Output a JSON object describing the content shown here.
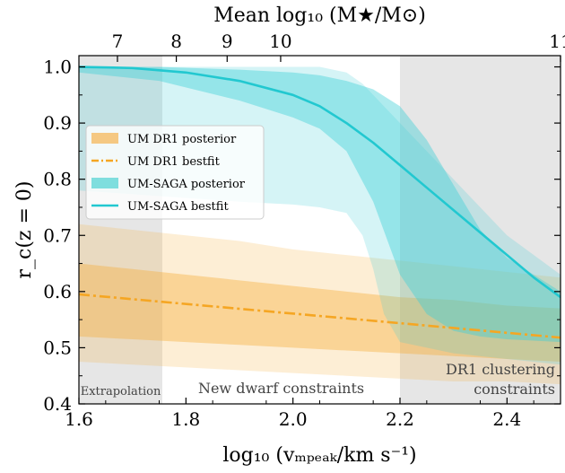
{
  "chart_data": {
    "type": "area",
    "xlabel": "log₁₀ (vₘₚₑₐₖ/km s⁻¹)",
    "ylabel": "r_c(z = 0)",
    "top_xlabel": "Mean log₁₀ (M★/M⊙)",
    "xlim": [
      1.6,
      2.5
    ],
    "ylim": [
      0.4,
      1.02
    ],
    "x_ticks": [
      1.6,
      1.8,
      2.0,
      2.2,
      2.4
    ],
    "x_tick_labels": [
      "1.6",
      "1.8",
      "2.0",
      "2.2",
      "2.4"
    ],
    "y_ticks": [
      0.4,
      0.5,
      0.6,
      0.7,
      0.8,
      0.9,
      1.0
    ],
    "y_tick_labels": [
      "0.4",
      "0.5",
      "0.6",
      "0.7",
      "0.8",
      "0.9",
      "1.0"
    ],
    "top_ticks": [
      {
        "x": 1.672,
        "label": "7"
      },
      {
        "x": 1.782,
        "label": "8"
      },
      {
        "x": 1.877,
        "label": "9"
      },
      {
        "x": 1.977,
        "label": "10"
      },
      {
        "x": 2.5,
        "label": "11"
      }
    ],
    "regions": [
      {
        "x": [
          1.6,
          1.756
        ],
        "label": "Extrapolation",
        "label_lines": [
          "Extrapolation"
        ],
        "color": "#e6e6e6"
      },
      {
        "x": [
          1.756,
          2.2
        ],
        "label": "New dwarf constraints",
        "label_lines": [
          "New dwarf constraints"
        ],
        "color": "#ffffff"
      },
      {
        "x": [
          2.2,
          2.5
        ],
        "label": "DR1 clustering constraints",
        "label_lines": [
          "DR1 clustering",
          "constraints"
        ],
        "color": "#e6e6e6"
      }
    ],
    "legend": {
      "position": "upper-left",
      "entries": [
        {
          "label": "UM DR1 posterior",
          "kind": "band",
          "color": "#f5c882"
        },
        {
          "label": "UM DR1 bestfit",
          "kind": "dashdot",
          "color": "#f5a623"
        },
        {
          "label": "UM-SAGA posterior",
          "kind": "band",
          "color": "#7fdede"
        },
        {
          "label": "UM-SAGA bestfit",
          "kind": "line",
          "color": "#22c8d0"
        }
      ]
    },
    "series": [
      {
        "name": "UM DR1 posterior",
        "kind": "band",
        "color": "#f5b041",
        "outer": {
          "x": [
            1.6,
            1.7,
            1.8,
            1.9,
            2.0,
            2.1,
            2.2,
            2.3,
            2.4,
            2.5
          ],
          "upper": [
            0.72,
            0.71,
            0.7,
            0.69,
            0.675,
            0.665,
            0.655,
            0.645,
            0.635,
            0.625
          ],
          "lower": [
            0.475,
            0.47,
            0.465,
            0.46,
            0.455,
            0.45,
            0.445,
            0.44,
            0.44,
            0.435
          ]
        },
        "inner": {
          "x": [
            1.6,
            1.7,
            1.8,
            1.9,
            2.0,
            2.1,
            2.2,
            2.3,
            2.4,
            2.5
          ],
          "upper": [
            0.65,
            0.64,
            0.63,
            0.62,
            0.61,
            0.6,
            0.59,
            0.585,
            0.575,
            0.57
          ],
          "lower": [
            0.52,
            0.515,
            0.51,
            0.505,
            0.5,
            0.495,
            0.49,
            0.485,
            0.48,
            0.475
          ]
        }
      },
      {
        "name": "UM DR1 bestfit",
        "kind": "dashdot",
        "color": "#f5a623",
        "x": [
          1.6,
          2.5
        ],
        "y": [
          0.595,
          0.518
        ]
      },
      {
        "name": "UM-SAGA posterior",
        "kind": "band",
        "color": "#3ecfd6",
        "outer": {
          "x": [
            1.6,
            1.75,
            1.9,
            2.0,
            2.05,
            2.1,
            2.13,
            2.15,
            2.17,
            2.2,
            2.3,
            2.4,
            2.5
          ],
          "upper": [
            1.0,
            1.0,
            1.0,
            1.0,
            1.0,
            0.99,
            0.97,
            0.95,
            0.93,
            0.9,
            0.8,
            0.7,
            0.63
          ],
          "lower": [
            0.78,
            0.77,
            0.76,
            0.755,
            0.75,
            0.74,
            0.7,
            0.64,
            0.56,
            0.51,
            0.49,
            0.48,
            0.47
          ]
        },
        "inner": {
          "x": [
            1.6,
            1.75,
            1.9,
            2.0,
            2.05,
            2.1,
            2.15,
            2.2,
            2.25,
            2.3,
            2.35,
            2.4,
            2.5
          ],
          "upper": [
            1.0,
            1.0,
            0.995,
            0.99,
            0.985,
            0.975,
            0.96,
            0.93,
            0.87,
            0.79,
            0.71,
            0.66,
            0.6
          ],
          "lower": [
            0.99,
            0.975,
            0.94,
            0.91,
            0.89,
            0.85,
            0.76,
            0.63,
            0.56,
            0.53,
            0.52,
            0.515,
            0.51
          ]
        }
      },
      {
        "name": "UM-SAGA bestfit",
        "kind": "line",
        "color": "#22c8d0",
        "x": [
          1.6,
          1.7,
          1.8,
          1.9,
          2.0,
          2.05,
          2.1,
          2.15,
          2.2,
          2.25,
          2.3,
          2.35,
          2.4,
          2.45,
          2.5
        ],
        "y": [
          1.0,
          0.998,
          0.99,
          0.975,
          0.95,
          0.93,
          0.9,
          0.865,
          0.825,
          0.785,
          0.745,
          0.705,
          0.665,
          0.625,
          0.59
        ]
      }
    ]
  }
}
